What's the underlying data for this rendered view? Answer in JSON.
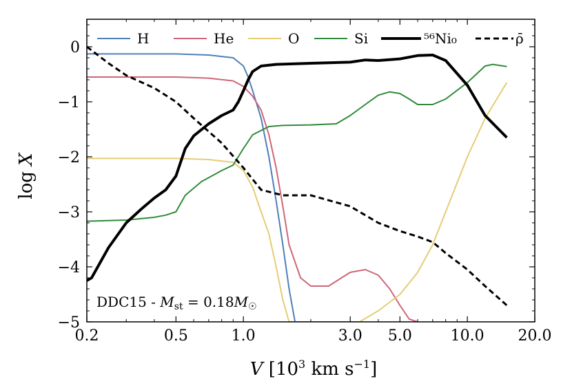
{
  "chart_data": {
    "type": "line",
    "xscale": "log",
    "xlim": [
      0.2,
      20.0
    ],
    "ylim": [
      -5,
      0.5
    ],
    "xticks": [
      {
        "value": 0.2,
        "label": "0.2"
      },
      {
        "value": 0.5,
        "label": "0.5"
      },
      {
        "value": 1.0,
        "label": "1.0"
      },
      {
        "value": 3.0,
        "label": "3.0"
      },
      {
        "value": 5.0,
        "label": "5.0"
      },
      {
        "value": 10.0,
        "label": "10.0"
      },
      {
        "value": 20.0,
        "label": "20.0"
      }
    ],
    "yticks": [
      {
        "value": 0,
        "label": "0"
      },
      {
        "value": -1,
        "label": "−1"
      },
      {
        "value": -2,
        "label": "−2"
      },
      {
        "value": -3,
        "label": "−3"
      },
      {
        "value": -4,
        "label": "−4"
      },
      {
        "value": -5,
        "label": "−5"
      }
    ],
    "xlabel": "V [10³ km s⁻¹]",
    "ylabel": "log X",
    "annotation": "DDC15 - Mst = 0.18M☉",
    "legend_position": "top",
    "grid": false,
    "series": [
      {
        "name": "H",
        "color": "#4c7fb8",
        "dash": "solid",
        "width": 2,
        "x": [
          0.2,
          0.3,
          0.5,
          0.7,
          0.9,
          1.0,
          1.05,
          1.1,
          1.2,
          1.3,
          1.4,
          1.5,
          1.6,
          1.7
        ],
        "y": [
          -0.13,
          -0.13,
          -0.13,
          -0.15,
          -0.2,
          -0.35,
          -0.55,
          -0.8,
          -1.3,
          -2.0,
          -2.8,
          -3.6,
          -4.4,
          -5.0
        ]
      },
      {
        "name": "He",
        "color": "#cf6577",
        "dash": "solid",
        "width": 2,
        "x": [
          0.2,
          0.3,
          0.5,
          0.7,
          0.9,
          1.0,
          1.1,
          1.2,
          1.3,
          1.4,
          1.5,
          1.6,
          1.8,
          2.0,
          2.4,
          3.0,
          3.5,
          4.0,
          4.5,
          5.0,
          5.5,
          6.0
        ],
        "y": [
          -0.55,
          -0.55,
          -0.55,
          -0.57,
          -0.62,
          -0.72,
          -0.9,
          -1.15,
          -1.6,
          -2.2,
          -2.9,
          -3.6,
          -4.2,
          -4.35,
          -4.35,
          -4.1,
          -4.05,
          -4.15,
          -4.4,
          -4.7,
          -4.95,
          -5.0
        ]
      },
      {
        "name": "O",
        "color": "#e5cc74",
        "dash": "solid",
        "width": 2,
        "x": [
          0.2,
          0.3,
          0.5,
          0.7,
          0.9,
          1.0,
          1.1,
          1.2,
          1.3,
          1.4,
          1.5,
          1.6,
          3.3,
          4.0,
          5.0,
          6.0,
          7.0,
          8.0,
          10.0,
          12.0,
          15.0
        ],
        "y": [
          -2.03,
          -2.03,
          -2.03,
          -2.05,
          -2.1,
          -2.25,
          -2.55,
          -3.0,
          -3.4,
          -4.0,
          -4.6,
          -5.0,
          -5.0,
          -4.8,
          -4.5,
          -4.1,
          -3.6,
          -3.0,
          -2.0,
          -1.3,
          -0.65
        ]
      },
      {
        "name": "Si",
        "color": "#2f8a3a",
        "dash": "solid",
        "width": 2,
        "x": [
          0.2,
          0.3,
          0.4,
          0.45,
          0.5,
          0.55,
          0.65,
          0.8,
          0.9,
          1.0,
          1.1,
          1.3,
          1.5,
          2.0,
          2.6,
          3.0,
          3.5,
          4.0,
          4.5,
          5.0,
          5.5,
          6.0,
          7.0,
          8.0,
          10.0,
          12.0,
          13.0,
          15.0
        ],
        "y": [
          -3.17,
          -3.15,
          -3.1,
          -3.06,
          -3.0,
          -2.7,
          -2.45,
          -2.25,
          -2.15,
          -1.85,
          -1.6,
          -1.45,
          -1.43,
          -1.42,
          -1.4,
          -1.25,
          -1.05,
          -0.88,
          -0.82,
          -0.85,
          -0.95,
          -1.05,
          -1.05,
          -0.95,
          -0.65,
          -0.35,
          -0.32,
          -0.36
        ]
      },
      {
        "name": "⁵⁶Ni₀",
        "color": "#000000",
        "dash": "solid",
        "width": 4,
        "x": [
          0.2,
          0.21,
          0.25,
          0.3,
          0.35,
          0.4,
          0.45,
          0.5,
          0.55,
          0.6,
          0.7,
          0.8,
          0.9,
          0.95,
          1.0,
          1.05,
          1.1,
          1.2,
          1.4,
          2.0,
          3.0,
          3.5,
          4.0,
          5.0,
          6.0,
          7.0,
          8.0,
          10.0,
          12.0,
          15.0
        ],
        "y": [
          -4.25,
          -4.2,
          -3.65,
          -3.2,
          -2.95,
          -2.75,
          -2.6,
          -2.35,
          -1.85,
          -1.62,
          -1.4,
          -1.25,
          -1.15,
          -1.0,
          -0.8,
          -0.6,
          -0.45,
          -0.35,
          -0.32,
          -0.3,
          -0.28,
          -0.24,
          -0.25,
          -0.22,
          -0.16,
          -0.15,
          -0.25,
          -0.7,
          -1.25,
          -1.65
        ]
      },
      {
        "name": "ρ̄",
        "color": "#000000",
        "dash": "dashed",
        "width": 3,
        "x": [
          0.2,
          0.25,
          0.3,
          0.4,
          0.5,
          0.6,
          0.8,
          1.0,
          1.2,
          1.5,
          2.0,
          3.0,
          4.0,
          5.0,
          6.0,
          7.0,
          8.0,
          10.0,
          12.0,
          15.0
        ],
        "y": [
          0.0,
          -0.3,
          -0.52,
          -0.75,
          -1.0,
          -1.3,
          -1.75,
          -2.2,
          -2.6,
          -2.7,
          -2.7,
          -2.9,
          -3.2,
          -3.35,
          -3.45,
          -3.55,
          -3.75,
          -4.05,
          -4.35,
          -4.7
        ]
      }
    ]
  }
}
